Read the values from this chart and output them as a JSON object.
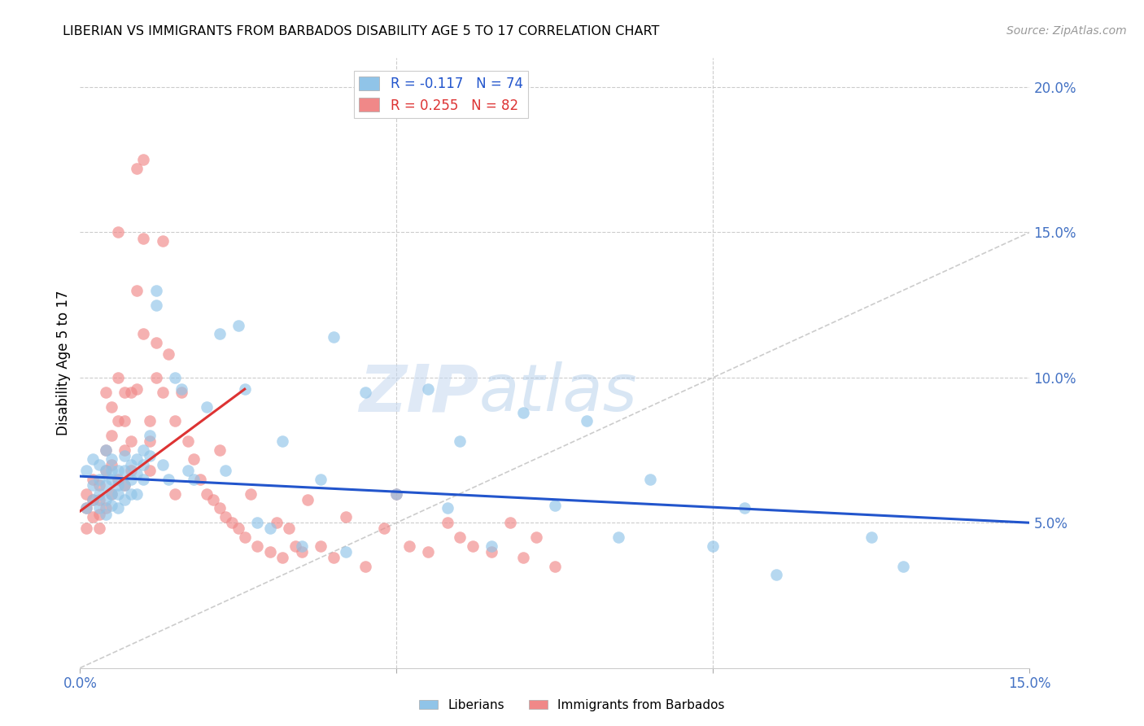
{
  "title": "LIBERIAN VS IMMIGRANTS FROM BARBADOS DISABILITY AGE 5 TO 17 CORRELATION CHART",
  "source": "Source: ZipAtlas.com",
  "ylabel": "Disability Age 5 to 17",
  "x_min": 0.0,
  "x_max": 0.15,
  "y_min": 0.0,
  "y_max": 0.21,
  "x_ticks": [
    0.0,
    0.05,
    0.1,
    0.15
  ],
  "x_tick_labels": [
    "0.0%",
    "",
    "",
    "15.0%"
  ],
  "y_ticks": [
    0.05,
    0.1,
    0.15,
    0.2
  ],
  "y_tick_labels": [
    "5.0%",
    "10.0%",
    "15.0%",
    "20.0%"
  ],
  "liberian_color": "#90c4e8",
  "barbados_color": "#f08888",
  "liberian_line_color": "#2255cc",
  "barbados_line_color": "#dd3333",
  "diagonal_color": "#cccccc",
  "watermark_zip": "ZIP",
  "watermark_atlas": "atlas",
  "lib_R": "R = -0.117",
  "lib_N": "N = 74",
  "barb_R": "R = 0.255",
  "barb_N": "N = 82",
  "liberian_x": [
    0.001,
    0.001,
    0.002,
    0.002,
    0.002,
    0.003,
    0.003,
    0.003,
    0.003,
    0.004,
    0.004,
    0.004,
    0.004,
    0.004,
    0.005,
    0.005,
    0.005,
    0.005,
    0.005,
    0.006,
    0.006,
    0.006,
    0.006,
    0.007,
    0.007,
    0.007,
    0.007,
    0.008,
    0.008,
    0.008,
    0.009,
    0.009,
    0.009,
    0.01,
    0.01,
    0.01,
    0.011,
    0.011,
    0.012,
    0.012,
    0.013,
    0.014,
    0.015,
    0.016,
    0.017,
    0.018,
    0.02,
    0.022,
    0.023,
    0.025,
    0.026,
    0.028,
    0.03,
    0.032,
    0.035,
    0.038,
    0.04,
    0.042,
    0.045,
    0.05,
    0.055,
    0.058,
    0.06,
    0.065,
    0.07,
    0.075,
    0.08,
    0.085,
    0.09,
    0.1,
    0.105,
    0.11,
    0.125,
    0.13
  ],
  "liberian_y": [
    0.068,
    0.055,
    0.063,
    0.058,
    0.072,
    0.065,
    0.06,
    0.055,
    0.07,
    0.068,
    0.063,
    0.058,
    0.075,
    0.053,
    0.068,
    0.065,
    0.06,
    0.056,
    0.072,
    0.068,
    0.063,
    0.06,
    0.055,
    0.073,
    0.068,
    0.063,
    0.058,
    0.07,
    0.065,
    0.06,
    0.072,
    0.067,
    0.06,
    0.075,
    0.07,
    0.065,
    0.08,
    0.073,
    0.13,
    0.125,
    0.07,
    0.065,
    0.1,
    0.096,
    0.068,
    0.065,
    0.09,
    0.115,
    0.068,
    0.118,
    0.096,
    0.05,
    0.048,
    0.078,
    0.042,
    0.065,
    0.114,
    0.04,
    0.095,
    0.06,
    0.096,
    0.055,
    0.078,
    0.042,
    0.088,
    0.056,
    0.085,
    0.045,
    0.065,
    0.042,
    0.055,
    0.032,
    0.045,
    0.035
  ],
  "barbados_x": [
    0.001,
    0.001,
    0.001,
    0.002,
    0.002,
    0.002,
    0.003,
    0.003,
    0.003,
    0.003,
    0.004,
    0.004,
    0.004,
    0.004,
    0.005,
    0.005,
    0.005,
    0.005,
    0.006,
    0.006,
    0.006,
    0.006,
    0.007,
    0.007,
    0.007,
    0.007,
    0.008,
    0.008,
    0.008,
    0.009,
    0.009,
    0.009,
    0.01,
    0.01,
    0.01,
    0.011,
    0.011,
    0.011,
    0.012,
    0.012,
    0.013,
    0.013,
    0.014,
    0.015,
    0.015,
    0.016,
    0.017,
    0.018,
    0.019,
    0.02,
    0.021,
    0.022,
    0.022,
    0.023,
    0.024,
    0.025,
    0.026,
    0.027,
    0.028,
    0.03,
    0.031,
    0.032,
    0.033,
    0.034,
    0.035,
    0.036,
    0.038,
    0.04,
    0.042,
    0.045,
    0.048,
    0.05,
    0.052,
    0.055,
    0.058,
    0.06,
    0.062,
    0.065,
    0.068,
    0.07,
    0.072,
    0.075
  ],
  "barbados_y": [
    0.06,
    0.055,
    0.048,
    0.065,
    0.058,
    0.052,
    0.063,
    0.058,
    0.053,
    0.048,
    0.095,
    0.075,
    0.068,
    0.055,
    0.09,
    0.08,
    0.07,
    0.06,
    0.15,
    0.1,
    0.085,
    0.065,
    0.095,
    0.085,
    0.075,
    0.063,
    0.095,
    0.078,
    0.068,
    0.172,
    0.13,
    0.096,
    0.175,
    0.148,
    0.115,
    0.085,
    0.078,
    0.068,
    0.112,
    0.1,
    0.147,
    0.095,
    0.108,
    0.085,
    0.06,
    0.095,
    0.078,
    0.072,
    0.065,
    0.06,
    0.058,
    0.055,
    0.075,
    0.052,
    0.05,
    0.048,
    0.045,
    0.06,
    0.042,
    0.04,
    0.05,
    0.038,
    0.048,
    0.042,
    0.04,
    0.058,
    0.042,
    0.038,
    0.052,
    0.035,
    0.048,
    0.06,
    0.042,
    0.04,
    0.05,
    0.045,
    0.042,
    0.04,
    0.05,
    0.038,
    0.045,
    0.035
  ]
}
